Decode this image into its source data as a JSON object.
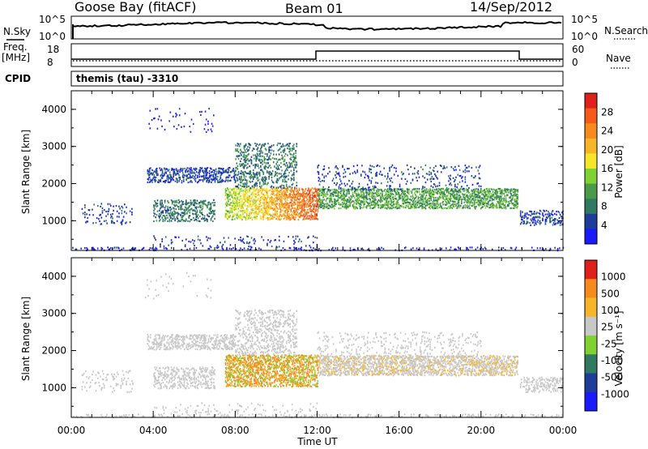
{
  "header": {
    "station": "Goose Bay (fitACF)",
    "beam": "Beam 01",
    "date": "14/Sep/2012"
  },
  "status_panels": {
    "nsky_label": "N.Sky",
    "nsky_ticks": [
      "10^5",
      "10^0"
    ],
    "nsearch_label": "N.Search",
    "nsearch_ticks": [
      "10^5",
      "10^0"
    ],
    "freq_label_1": "Freq.",
    "freq_label_2": "[MHz]",
    "freq_ticks": [
      "18",
      "8"
    ],
    "nave_label": "Nave",
    "nave_ticks": [
      "60",
      "0"
    ],
    "cpid_label": "CPID",
    "cpid_text": "themis (tau) -3310"
  },
  "chart_data": [
    {
      "type": "heatmap",
      "ylabel": "Slant Range [km]",
      "yticks": [
        "1000",
        "2000",
        "3000",
        "4000"
      ],
      "ylim": [
        200,
        4500
      ],
      "xlim_hours": [
        0,
        24
      ],
      "colorbar": {
        "label": "Power [dB]",
        "ticks": [
          "4",
          "8",
          "12",
          "16",
          "20",
          "24",
          "28"
        ],
        "colors": [
          "#1a1aff",
          "#1e3c9a",
          "#2f7a60",
          "#4a9b48",
          "#7fd232",
          "#f7e52a",
          "#f7b52a",
          "#f78a1e",
          "#f65a1a",
          "#e0201a"
        ]
      }
    },
    {
      "type": "heatmap",
      "ylabel": "Slant Range [km]",
      "yticks": [
        "1000",
        "2000",
        "3000",
        "4000"
      ],
      "ylim": [
        200,
        4500
      ],
      "xlim_hours": [
        0,
        24
      ],
      "xlabel": "Time UT",
      "xticks": [
        "00:00",
        "04:00",
        "08:00",
        "12:00",
        "16:00",
        "20:00",
        "00:00"
      ],
      "colorbar": {
        "label": "Velocity [m s⁻¹]",
        "ticks": [
          "1000",
          "500",
          "100",
          "25",
          "-25",
          "-100",
          "-500",
          "-1000"
        ],
        "colors": [
          "#1a1aff",
          "#1e3c9a",
          "#2f7a60",
          "#7fd232",
          "#c8c8c8",
          "#f7b52a",
          "#f78a1e",
          "#e0201a"
        ]
      }
    }
  ]
}
